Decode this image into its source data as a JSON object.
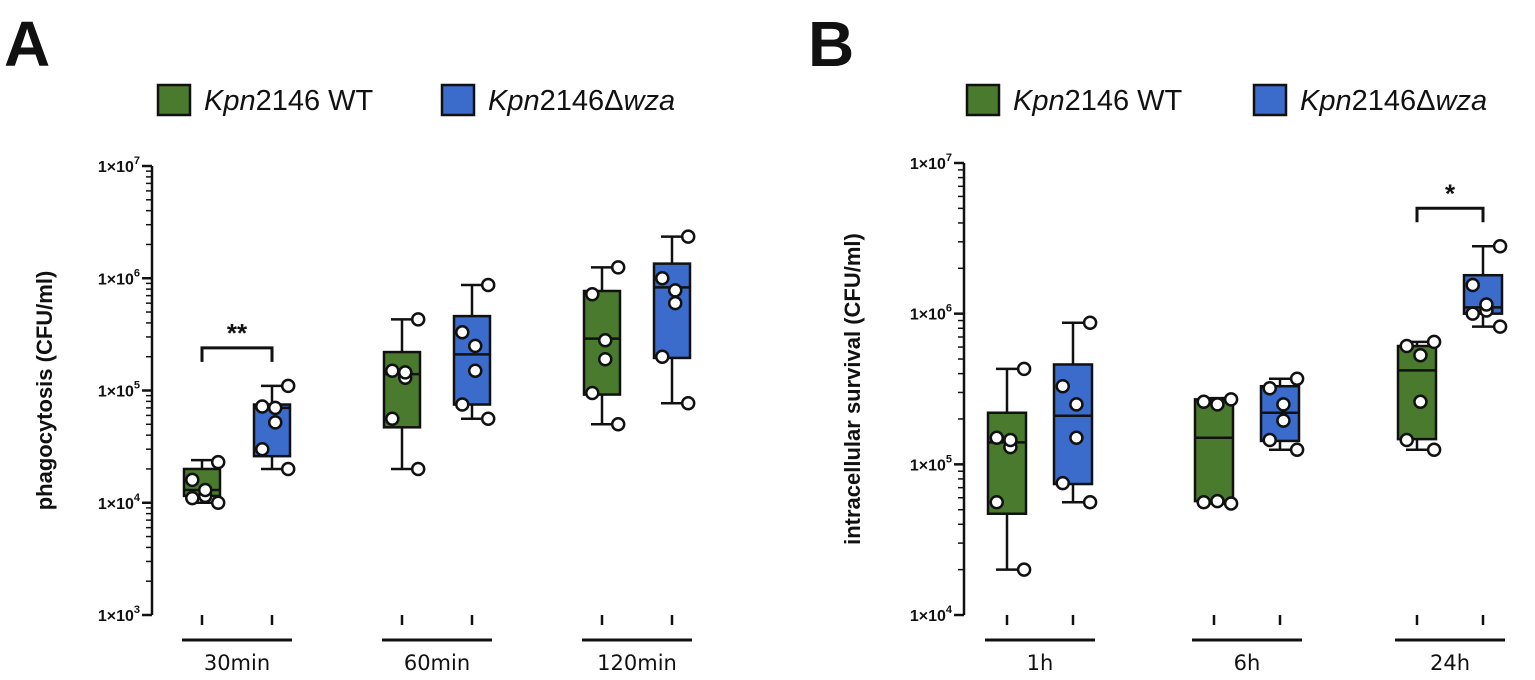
{
  "colors": {
    "wt": "#4a7a2e",
    "wza": "#3b6ccc",
    "ink": "#111111",
    "point": "#ffffff"
  },
  "chart_data": [
    {
      "type": "box",
      "panel": "A",
      "ylabel": "phagocytosis (CFU/ml)",
      "yscale": "log",
      "ylim": [
        1000,
        10000000
      ],
      "yticks": [
        {
          "value": 1000,
          "mant": "1×10",
          "exp": "3"
        },
        {
          "value": 10000,
          "mant": "1×10",
          "exp": "4"
        },
        {
          "value": 100000,
          "mant": "1×10",
          "exp": "5"
        },
        {
          "value": 1000000,
          "mant": "1×10",
          "exp": "6"
        },
        {
          "value": 10000000,
          "mant": "1×10",
          "exp": "7"
        }
      ],
      "legend": [
        {
          "key": "wt",
          "italic": "Kpn",
          "plain": "2146 WT",
          "italic2": ""
        },
        {
          "key": "wza",
          "italic": "Kpn",
          "plain": "2146Δ",
          "italic2": "wza"
        }
      ],
      "categories": [
        "30min",
        "60min",
        "120min"
      ],
      "groups": [
        {
          "boxes": [
            {
              "series": "wt",
              "min": 10000,
              "q1": 11500,
              "median": 13000,
              "q3": 20000,
              "max": 24000,
              "points": [
                10000,
                11000,
                11500,
                13000,
                16000,
                23000
              ]
            },
            {
              "series": "wza",
              "min": 20000,
              "q1": 26000,
              "median": 70000,
              "q3": 75000,
              "max": 110000,
              "points": [
                20000,
                30000,
                52000,
                70000,
                72000,
                110000
              ]
            }
          ],
          "sig": "**"
        },
        {
          "boxes": [
            {
              "series": "wt",
              "min": 20000,
              "q1": 47000,
              "median": 140000,
              "q3": 220000,
              "max": 430000,
              "points": [
                20000,
                56000,
                130000,
                145000,
                150000,
                430000
              ]
            },
            {
              "series": "wza",
              "min": 56000,
              "q1": 75000,
              "median": 210000,
              "q3": 460000,
              "max": 870000,
              "points": [
                56000,
                75000,
                150000,
                250000,
                330000,
                870000
              ]
            }
          ],
          "sig": ""
        },
        {
          "boxes": [
            {
              "series": "wt",
              "min": 50000,
              "q1": 92000,
              "median": 290000,
              "q3": 770000,
              "max": 1250000,
              "points": [
                50000,
                95000,
                190000,
                280000,
                720000,
                1250000
              ]
            },
            {
              "series": "wza",
              "min": 77000,
              "q1": 195000,
              "median": 830000,
              "q3": 1350000,
              "max": 2350000,
              "points": [
                77000,
                200000,
                600000,
                780000,
                1000000,
                2350000
              ]
            }
          ],
          "sig": ""
        }
      ]
    },
    {
      "type": "box",
      "panel": "B",
      "ylabel": "intracellular survival (CFU/ml)",
      "yscale": "log",
      "ylim": [
        10000,
        10000000
      ],
      "yticks": [
        {
          "value": 10000,
          "mant": "1×10",
          "exp": "4"
        },
        {
          "value": 100000,
          "mant": "1×10",
          "exp": "5"
        },
        {
          "value": 1000000,
          "mant": "1×10",
          "exp": "6"
        },
        {
          "value": 10000000,
          "mant": "1×10",
          "exp": "7"
        }
      ],
      "legend": [
        {
          "key": "wt",
          "italic": "Kpn",
          "plain": "2146 WT",
          "italic2": ""
        },
        {
          "key": "wza",
          "italic": "Kpn",
          "plain": "2146Δ",
          "italic2": "wza"
        }
      ],
      "categories": [
        "1h",
        "6h",
        "24h"
      ],
      "groups": [
        {
          "boxes": [
            {
              "series": "wt",
              "min": 20000,
              "q1": 47000,
              "median": 140000,
              "q3": 220000,
              "max": 430000,
              "points": [
                20000,
                56000,
                130000,
                145000,
                150000,
                430000
              ]
            },
            {
              "series": "wza",
              "min": 56000,
              "q1": 74000,
              "median": 210000,
              "q3": 460000,
              "max": 870000,
              "points": [
                56000,
                75000,
                150000,
                250000,
                330000,
                870000
              ]
            }
          ],
          "sig": ""
        },
        {
          "boxes": [
            {
              "series": "wt",
              "min": 55000,
              "q1": 57000,
              "median": 150000,
              "q3": 270000,
              "max": 275000,
              "points": [
                55000,
                56000,
                57000,
                250000,
                260000,
                270000
              ]
            },
            {
              "series": "wza",
              "min": 125000,
              "q1": 143000,
              "median": 220000,
              "q3": 330000,
              "max": 370000,
              "points": [
                125000,
                145000,
                195000,
                250000,
                320000,
                370000
              ]
            }
          ],
          "sig": ""
        },
        {
          "boxes": [
            {
              "series": "wt",
              "min": 125000,
              "q1": 147000,
              "median": 420000,
              "q3": 610000,
              "max": 650000,
              "points": [
                125000,
                145000,
                260000,
                530000,
                610000,
                650000
              ]
            },
            {
              "series": "wza",
              "min": 820000,
              "q1": 1000000,
              "median": 1100000,
              "q3": 1800000,
              "max": 2800000,
              "points": [
                820000,
                1000000,
                1050000,
                1150000,
                1550000,
                2800000
              ]
            }
          ],
          "sig": "*"
        }
      ]
    }
  ]
}
